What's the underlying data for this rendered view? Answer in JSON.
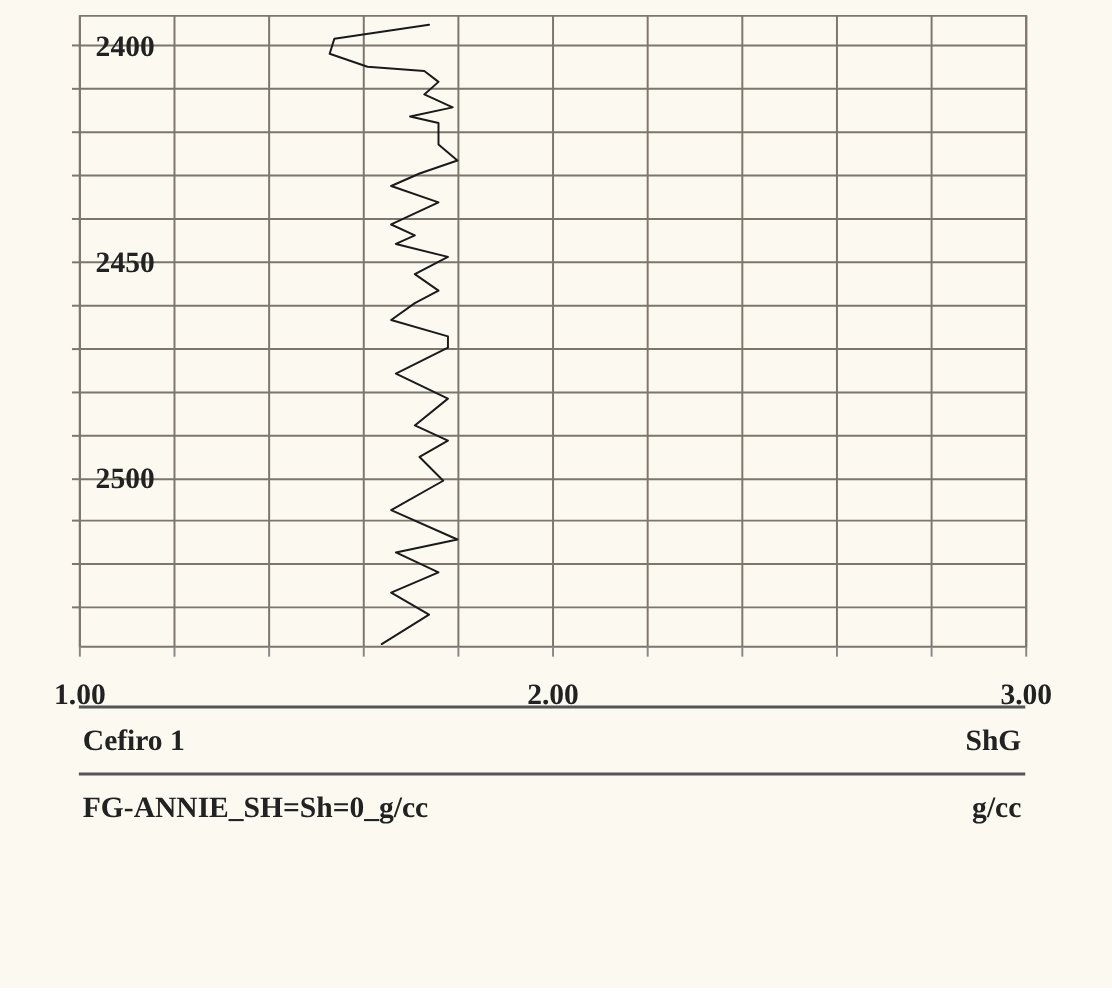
{
  "chart_data": {
    "type": "line",
    "x": [
      1.74,
      1.54,
      1.53,
      1.61,
      1.73,
      1.76,
      1.73,
      1.79,
      1.7,
      1.76,
      1.76,
      1.8,
      1.72,
      1.66,
      1.76,
      1.66,
      1.71,
      1.67,
      1.78,
      1.71,
      1.76,
      1.71,
      1.66,
      1.78,
      1.78,
      1.67,
      1.78,
      1.71,
      1.78,
      1.72,
      1.77,
      1.66,
      1.8,
      1.67,
      1.76,
      1.66,
      1.74,
      1.64
    ],
    "series": [
      {
        "color": "#1a1a1a",
        "values": [
          2395.3,
          2398.5,
          2402,
          2405,
          2406,
          2408.5,
          2411.4,
          2414.4,
          2416.5,
          2418,
          2423,
          2426.7,
          2429.7,
          2432.6,
          2436.4,
          2441.5,
          2444,
          2446,
          2449,
          2453,
          2456.8,
          2459.7,
          2463.6,
          2467.4,
          2470,
          2476,
          2481.8,
          2488,
          2491.5,
          2495.3,
          2500.8,
          2507.6,
          2514.4,
          2517.4,
          2522,
          2526.7,
          2531.8,
          2538.6
        ]
      }
    ],
    "xlim": [
      1.0,
      3.0
    ],
    "xticks": [
      {
        "value": 1.0,
        "label": "1.00"
      },
      {
        "value": 1.2,
        "label": null
      },
      {
        "value": 1.4,
        "label": null
      },
      {
        "value": 1.6,
        "label": null
      },
      {
        "value": 1.8,
        "label": null
      },
      {
        "value": 2.0,
        "label": "2.00"
      },
      {
        "value": 2.2,
        "label": null
      },
      {
        "value": 2.4,
        "label": null
      },
      {
        "value": 2.6,
        "label": null
      },
      {
        "value": 2.8,
        "label": null
      },
      {
        "value": 3.0,
        "label": "3.00"
      }
    ],
    "ylim": [
      2539,
      2393
    ],
    "yticks": [
      2400,
      {
        "value": 2410,
        "label": null
      },
      {
        "value": 2420,
        "label": null
      },
      {
        "value": 2430,
        "label": null
      },
      {
        "value": 2440,
        "label": null
      },
      2450,
      {
        "value": 2460,
        "label": null
      },
      {
        "value": 2470,
        "label": null
      },
      {
        "value": 2480,
        "label": null
      },
      {
        "value": 2490,
        "label": null
      },
      2500,
      {
        "value": 2510,
        "label": null
      },
      {
        "value": 2520,
        "label": null
      },
      {
        "value": 2530,
        "label": null
      }
    ],
    "grid": true,
    "line_style": "solid",
    "annotations": [
      "Cefiro 1",
      "ShG",
      "FG-ANNIE_SH=Sh=0_g/cc",
      "g/cc"
    ]
  }
}
